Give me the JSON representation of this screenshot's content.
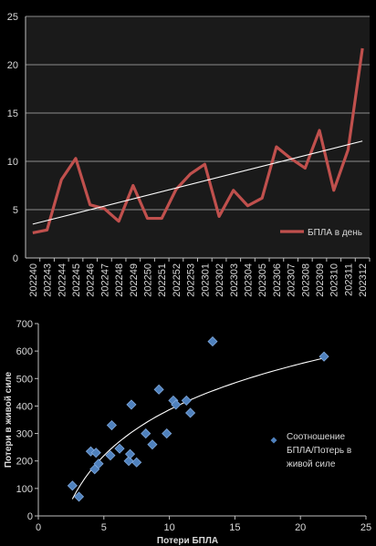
{
  "chart_data": [
    {
      "type": "line",
      "title": "",
      "xlabel": "",
      "ylabel": "",
      "ylim": [
        0,
        25
      ],
      "yticks": [
        "0",
        "5",
        "10",
        "15",
        "20",
        "25"
      ],
      "grid": true,
      "legend_position": "bottom-right",
      "categories": [
        "202240",
        "202243",
        "202244",
        "202245",
        "202246",
        "202247",
        "202248",
        "202249",
        "202250",
        "202251",
        "202252",
        "202253",
        "202301",
        "202302",
        "202303",
        "202304",
        "202305",
        "202306",
        "202307",
        "202308",
        "202309",
        "202310",
        "202311",
        "202312"
      ],
      "series": [
        {
          "name": "БПЛА в день",
          "color": "#c0504d",
          "values": [
            2.6,
            2.9,
            8.1,
            10.3,
            5.5,
            5.1,
            3.8,
            7.5,
            4.1,
            4.1,
            7.1,
            8.7,
            9.7,
            4.3,
            7.0,
            5.4,
            6.2,
            11.5,
            10.3,
            9.3,
            13.2,
            7.0,
            11.2,
            21.7
          ]
        }
      ],
      "trendline": {
        "type": "linear",
        "color": "#ffffff",
        "from": 3.5,
        "to": 12.1
      }
    },
    {
      "type": "scatter",
      "title": "",
      "xlabel": "Потери БПЛА",
      "ylabel": "Потери в живой силе",
      "xlim": [
        0,
        25
      ],
      "ylim": [
        0,
        700
      ],
      "xticks": [
        "0",
        "5",
        "10",
        "15",
        "20",
        "25"
      ],
      "yticks": [
        "0",
        "100",
        "200",
        "300",
        "400",
        "500",
        "600",
        "700"
      ],
      "grid": false,
      "legend_position": "right",
      "series": [
        {
          "name": "Соотношение БПЛА/Потерь в живой силе",
          "color": "#4f81bd",
          "points": [
            [
              2.6,
              110
            ],
            [
              3.1,
              70
            ],
            [
              4.0,
              235
            ],
            [
              4.3,
              170
            ],
            [
              4.4,
              230
            ],
            [
              4.6,
              190
            ],
            [
              5.5,
              220
            ],
            [
              5.6,
              330
            ],
            [
              6.2,
              245
            ],
            [
              6.9,
              200
            ],
            [
              7.0,
              225
            ],
            [
              7.1,
              405
            ],
            [
              7.5,
              195
            ],
            [
              8.2,
              300
            ],
            [
              8.7,
              260
            ],
            [
              9.2,
              460
            ],
            [
              9.8,
              300
            ],
            [
              10.3,
              420
            ],
            [
              10.5,
              405
            ],
            [
              11.3,
              420
            ],
            [
              11.6,
              375
            ],
            [
              13.3,
              635
            ],
            [
              21.8,
              580
            ]
          ]
        }
      ],
      "trendline": {
        "type": "logarithmic",
        "color": "#ffffff"
      }
    }
  ]
}
